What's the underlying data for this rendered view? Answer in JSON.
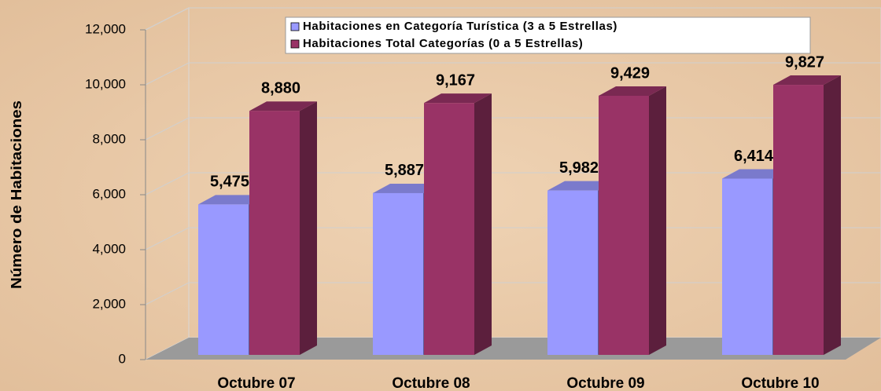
{
  "chart_data": {
    "type": "bar3d",
    "categories": [
      "Octubre 07",
      "Octubre 08",
      "Octubre 09",
      "Octubre 10"
    ],
    "ylabel": "Número de Habitaciones",
    "series": [
      {
        "name": "Habitaciones en Categoría Turística (3 a 5 Estrellas)",
        "color": "#9999ff",
        "values": [
          5475,
          5887,
          5982,
          6414
        ],
        "value_labels": [
          "5,475",
          "5,887",
          "5,982",
          "6,414"
        ]
      },
      {
        "name": "Habitaciones Total Categorías (0 a 5 Estrellas)",
        "color": "#993366",
        "values": [
          8880,
          9167,
          9429,
          9827
        ],
        "value_labels": [
          "8,880",
          "9,167",
          "9,429",
          "9,827"
        ]
      }
    ],
    "ylim": [
      0,
      12000
    ],
    "yticks": [
      0,
      {
        "value": 2000,
        "label": "2,000"
      },
      {
        "value": 4000,
        "label": "4,000"
      },
      {
        "value": 6000,
        "label": "6,000"
      },
      {
        "value": 8000,
        "label": "8,000"
      },
      {
        "value": 10000,
        "label": "10,000"
      },
      {
        "value": 12000,
        "label": "12,000"
      }
    ],
    "grid": true
  }
}
